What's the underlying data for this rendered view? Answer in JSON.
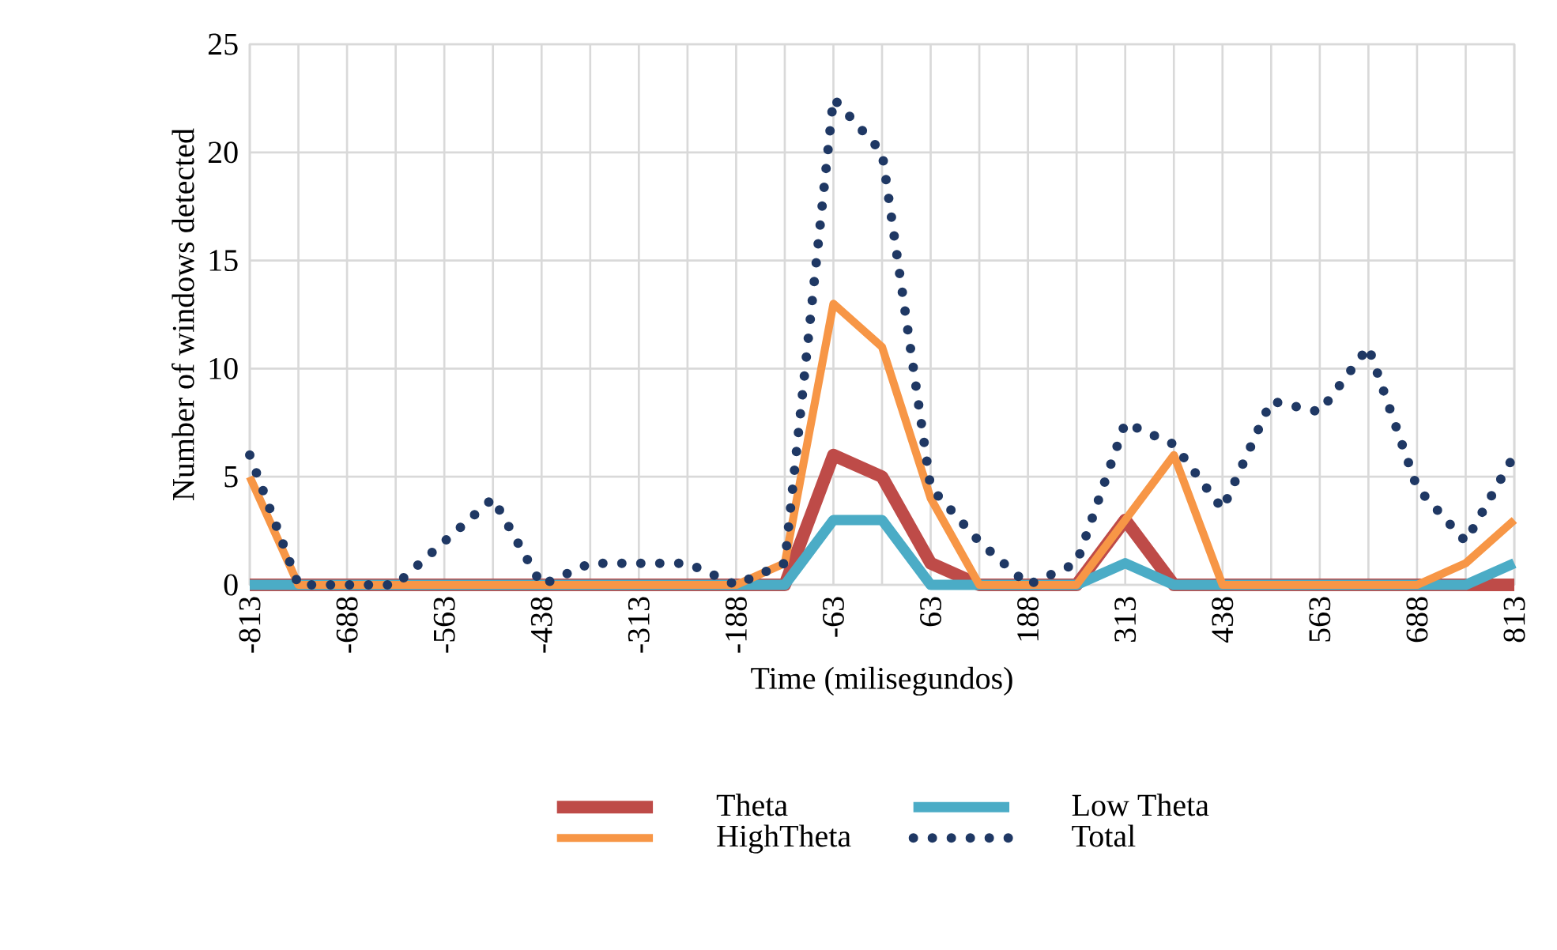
{
  "chart_data": {
    "type": "line",
    "xlabel": "Time (milisegundos)",
    "ylabel": "Number of windows detected",
    "categories": [
      "-813",
      null,
      "-688",
      null,
      "-563",
      null,
      "-438",
      null,
      "-313",
      null,
      "-188",
      null,
      "-63",
      null,
      "63",
      null,
      "188",
      null,
      "313",
      null,
      "438",
      null,
      "563",
      null,
      "688",
      null,
      "813"
    ],
    "series": [
      {
        "name": "Theta",
        "color": "#be4b48",
        "line_style": "solid",
        "values": [
          0,
          0,
          0,
          0,
          0,
          0,
          0,
          0,
          0,
          0,
          0,
          0,
          6,
          5,
          1,
          0,
          0,
          0,
          3,
          0,
          0,
          0,
          0,
          0,
          0,
          0,
          0
        ]
      },
      {
        "name": "Low Theta",
        "color": "#4bacc6",
        "line_style": "solid",
        "values": [
          0,
          0,
          0,
          0,
          0,
          0,
          0,
          0,
          0,
          0,
          0,
          0,
          3,
          3,
          0,
          0,
          0,
          0,
          1,
          0,
          0,
          0,
          0,
          0,
          0,
          0,
          1
        ]
      },
      {
        "name": "HighTheta",
        "color": "#f79646",
        "line_style": "solid",
        "values": [
          5,
          0,
          0,
          0,
          0,
          0,
          0,
          0,
          0,
          0,
          0,
          1,
          13,
          11,
          4,
          0,
          0,
          0,
          3,
          6,
          0,
          0,
          0,
          0,
          0,
          1,
          3
        ]
      },
      {
        "name": "Total",
        "color": "#1f3864",
        "line_style": "dotted",
        "values": [
          6,
          0,
          0,
          0,
          2,
          4,
          0,
          1,
          1,
          1,
          0,
          1,
          22.5,
          20,
          4.5,
          2,
          0,
          1,
          7.5,
          6.5,
          3.5,
          8.5,
          8,
          11,
          4.5,
          2,
          6
        ]
      }
    ],
    "ylim": [
      0,
      25
    ],
    "yticks": [
      0,
      5,
      10,
      15,
      20,
      25
    ],
    "grid": true,
    "legend": "bottom",
    "marker": "none"
  }
}
